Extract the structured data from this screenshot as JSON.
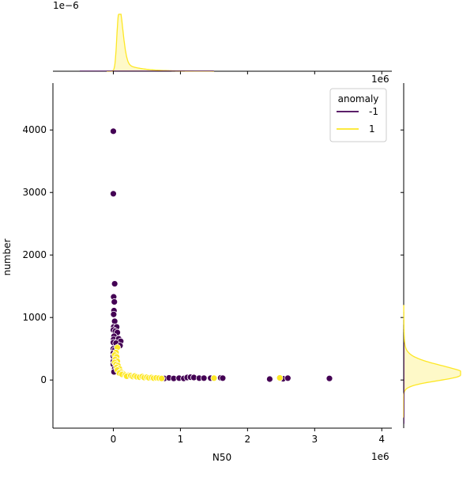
{
  "chart_data": {
    "type": "scatter",
    "subtype": "jointplot",
    "xlabel": "N50",
    "ylabel": "number",
    "x_offset_text": "1e6",
    "top_marginal_offset_text": "1e−6",
    "right_marginal_offset_text": "1e6",
    "xlim": [
      -900000,
      4150000
    ],
    "ylim": [
      -770,
      4750
    ],
    "x_ticks": [
      0,
      1000000,
      2000000,
      3000000,
      4000000
    ],
    "x_tick_labels": [
      "0",
      "1",
      "2",
      "3",
      "4"
    ],
    "y_ticks": [
      0,
      1000,
      2000,
      3000,
      4000
    ],
    "y_tick_labels": [
      "0",
      "1000",
      "2000",
      "3000",
      "4000"
    ],
    "grid": false,
    "legend": {
      "title": "anomaly",
      "placement": "top-right",
      "entries": [
        {
          "label": "-1",
          "color": "#440154"
        },
        {
          "label": "1",
          "color": "#fde725"
        }
      ]
    },
    "series": [
      {
        "name": "-1",
        "color": "#440154",
        "points": [
          [
            0,
            3980
          ],
          [
            0,
            2980
          ],
          [
            20000,
            1540
          ],
          [
            5000,
            1330
          ],
          [
            15000,
            1250
          ],
          [
            10000,
            1110
          ],
          [
            5000,
            1050
          ],
          [
            20000,
            940
          ],
          [
            5000,
            850
          ],
          [
            50000,
            850
          ],
          [
            0,
            800
          ],
          [
            30000,
            780
          ],
          [
            60000,
            760
          ],
          [
            10000,
            700
          ],
          [
            5000,
            650
          ],
          [
            80000,
            660
          ],
          [
            110000,
            620
          ],
          [
            0,
            600
          ],
          [
            40000,
            590
          ],
          [
            100000,
            550
          ],
          [
            0,
            500
          ],
          [
            20000,
            480
          ],
          [
            0,
            430
          ],
          [
            0,
            380
          ],
          [
            0,
            300
          ],
          [
            0,
            250
          ],
          [
            20000,
            180
          ],
          [
            10000,
            130
          ],
          [
            700000,
            30
          ],
          [
            760000,
            25
          ],
          [
            830000,
            35
          ],
          [
            900000,
            25
          ],
          [
            980000,
            30
          ],
          [
            1050000,
            25
          ],
          [
            1100000,
            40
          ],
          [
            1150000,
            45
          ],
          [
            1200000,
            40
          ],
          [
            1280000,
            30
          ],
          [
            1350000,
            30
          ],
          [
            1450000,
            30
          ],
          [
            1600000,
            35
          ],
          [
            1630000,
            30
          ],
          [
            2330000,
            15
          ],
          [
            2500000,
            30
          ],
          [
            2530000,
            20
          ],
          [
            2600000,
            30
          ],
          [
            3220000,
            25
          ]
        ]
      },
      {
        "name": "1",
        "color": "#fde725",
        "points": [
          [
            60000,
            520
          ],
          [
            40000,
            440
          ],
          [
            20000,
            400
          ],
          [
            50000,
            370
          ],
          [
            30000,
            330
          ],
          [
            60000,
            300
          ],
          [
            20000,
            280
          ],
          [
            40000,
            250
          ],
          [
            70000,
            230
          ],
          [
            50000,
            200
          ],
          [
            90000,
            180
          ],
          [
            60000,
            160
          ],
          [
            110000,
            130
          ],
          [
            90000,
            110
          ],
          [
            150000,
            100
          ],
          [
            130000,
            90
          ],
          [
            180000,
            80
          ],
          [
            220000,
            75
          ],
          [
            200000,
            60
          ],
          [
            260000,
            70
          ],
          [
            290000,
            55
          ],
          [
            320000,
            65
          ],
          [
            350000,
            50
          ],
          [
            390000,
            45
          ],
          [
            430000,
            55
          ],
          [
            460000,
            40
          ],
          [
            500000,
            45
          ],
          [
            530000,
            35
          ],
          [
            570000,
            40
          ],
          [
            600000,
            30
          ],
          [
            640000,
            35
          ],
          [
            680000,
            30
          ],
          [
            720000,
            25
          ],
          [
            1500000,
            30
          ],
          [
            2480000,
            35
          ]
        ]
      }
    ],
    "marginal_x_density": {
      "color": "#fde725",
      "peak_x": 80000,
      "note_series": "1"
    },
    "marginal_y_density": {
      "color": "#fde725",
      "peak_y": 80,
      "note_series": "1"
    }
  }
}
